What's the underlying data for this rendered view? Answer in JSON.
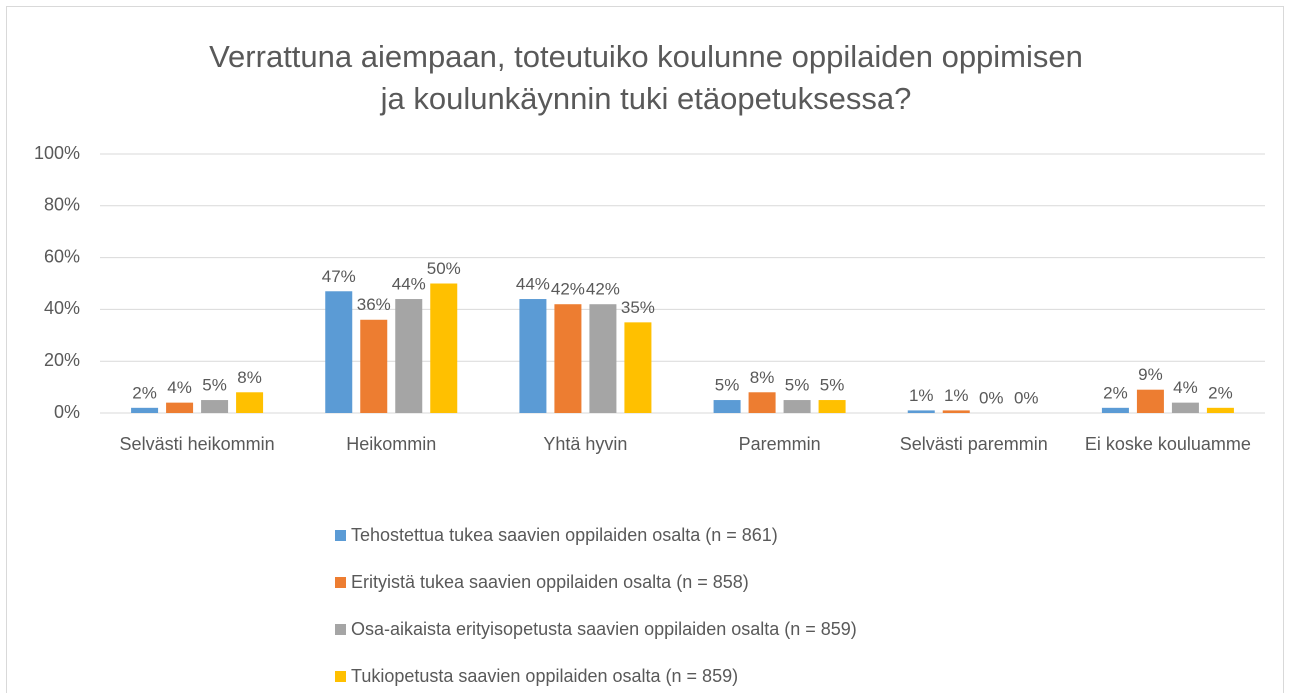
{
  "chart_data": {
    "type": "bar",
    "title": [
      "Verrattuna aiempaan, toteutuiko koulunne oppilaiden oppimisen",
      "ja koulunkäynnin tuki etäopetuksessa?"
    ],
    "categories": [
      "Selvästi heikommin",
      "Heikommin",
      "Yhtä hyvin",
      "Paremmin",
      "Selvästi paremmin",
      "Ei koske kouluamme"
    ],
    "series": [
      {
        "name": "Tehostettua tukea saavien oppilaiden osalta (n = 861)",
        "color": "#5b9bd5",
        "values": [
          2,
          47,
          44,
          5,
          1,
          2
        ],
        "value_labels": [
          "2%",
          "47%",
          "44%",
          "5%",
          "1%",
          "2%"
        ]
      },
      {
        "name": "Erityistä tukea saavien oppilaiden osalta (n = 858)",
        "color": "#ed7d31",
        "values": [
          4,
          36,
          42,
          8,
          1,
          9
        ],
        "value_labels": [
          "4%",
          "36%",
          "42%",
          "8%",
          "1%",
          "9%"
        ]
      },
      {
        "name": "Osa-aikaista erityisopetusta saavien oppilaiden osalta (n = 859)",
        "color": "#a5a5a5",
        "values": [
          5,
          44,
          42,
          5,
          0,
          4
        ],
        "value_labels": [
          "5%",
          "44%",
          "42%",
          "5%",
          "0%",
          "4%"
        ]
      },
      {
        "name": "Tukiopetusta saavien oppilaiden osalta (n = 859)",
        "color": "#ffc000",
        "values": [
          8,
          50,
          35,
          5,
          0,
          2
        ],
        "value_labels": [
          "8%",
          "50%",
          "35%",
          "5%",
          "0%",
          "2%"
        ]
      }
    ],
    "ylim": [
      0,
      100
    ],
    "yticks": [
      {
        "value": 0,
        "label": "0%"
      },
      {
        "value": 20,
        "label": "20%"
      },
      {
        "value": 40,
        "label": "40%"
      },
      {
        "value": 60,
        "label": "60%"
      },
      {
        "value": 80,
        "label": "80%"
      },
      {
        "value": 100,
        "label": "100%"
      }
    ],
    "grid": true,
    "legend": "bottom"
  }
}
